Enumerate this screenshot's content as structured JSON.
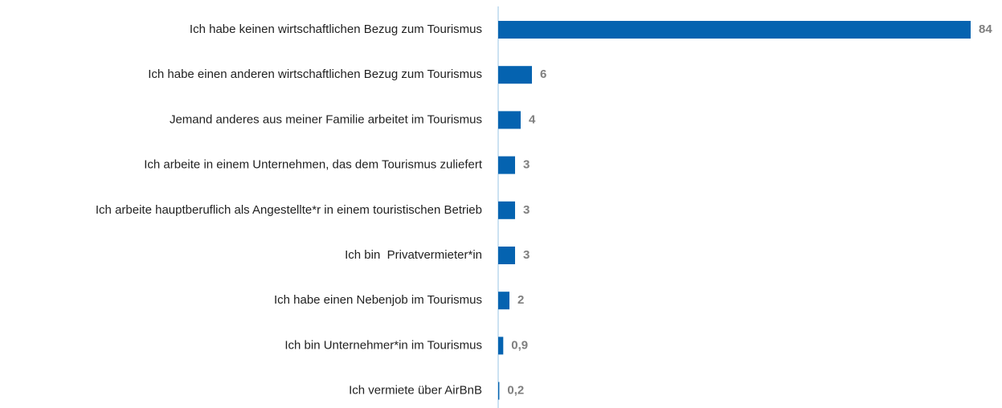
{
  "chart_data": {
    "type": "hbar",
    "categories": [
      "Ich habe keinen wirtschaftlichen Bezug zum Tourismus",
      "Ich habe einen anderen wirtschaftlichen Bezug zum Tourismus",
      "Jemand anderes aus meiner Familie arbeitet im Tourismus",
      "Ich arbeite in einem Unternehmen, das dem Tourismus zuliefert",
      "Ich arbeite hauptberuflich als Angestellte*r in einem touristischen Betrieb",
      "Ich bin  Privatvermieter*in",
      "Ich habe einen Nebenjob im Tourismus",
      "Ich bin Unternehmer*in im Tourismus",
      "Ich vermiete über AirBnB"
    ],
    "values": [
      84,
      6,
      4,
      3,
      3,
      3,
      2,
      0.9,
      0.2
    ],
    "value_labels": [
      "84",
      "6",
      "4",
      "3",
      "3",
      "3",
      "2",
      "0,9",
      "0,2"
    ],
    "color": "#0563b0"
  }
}
